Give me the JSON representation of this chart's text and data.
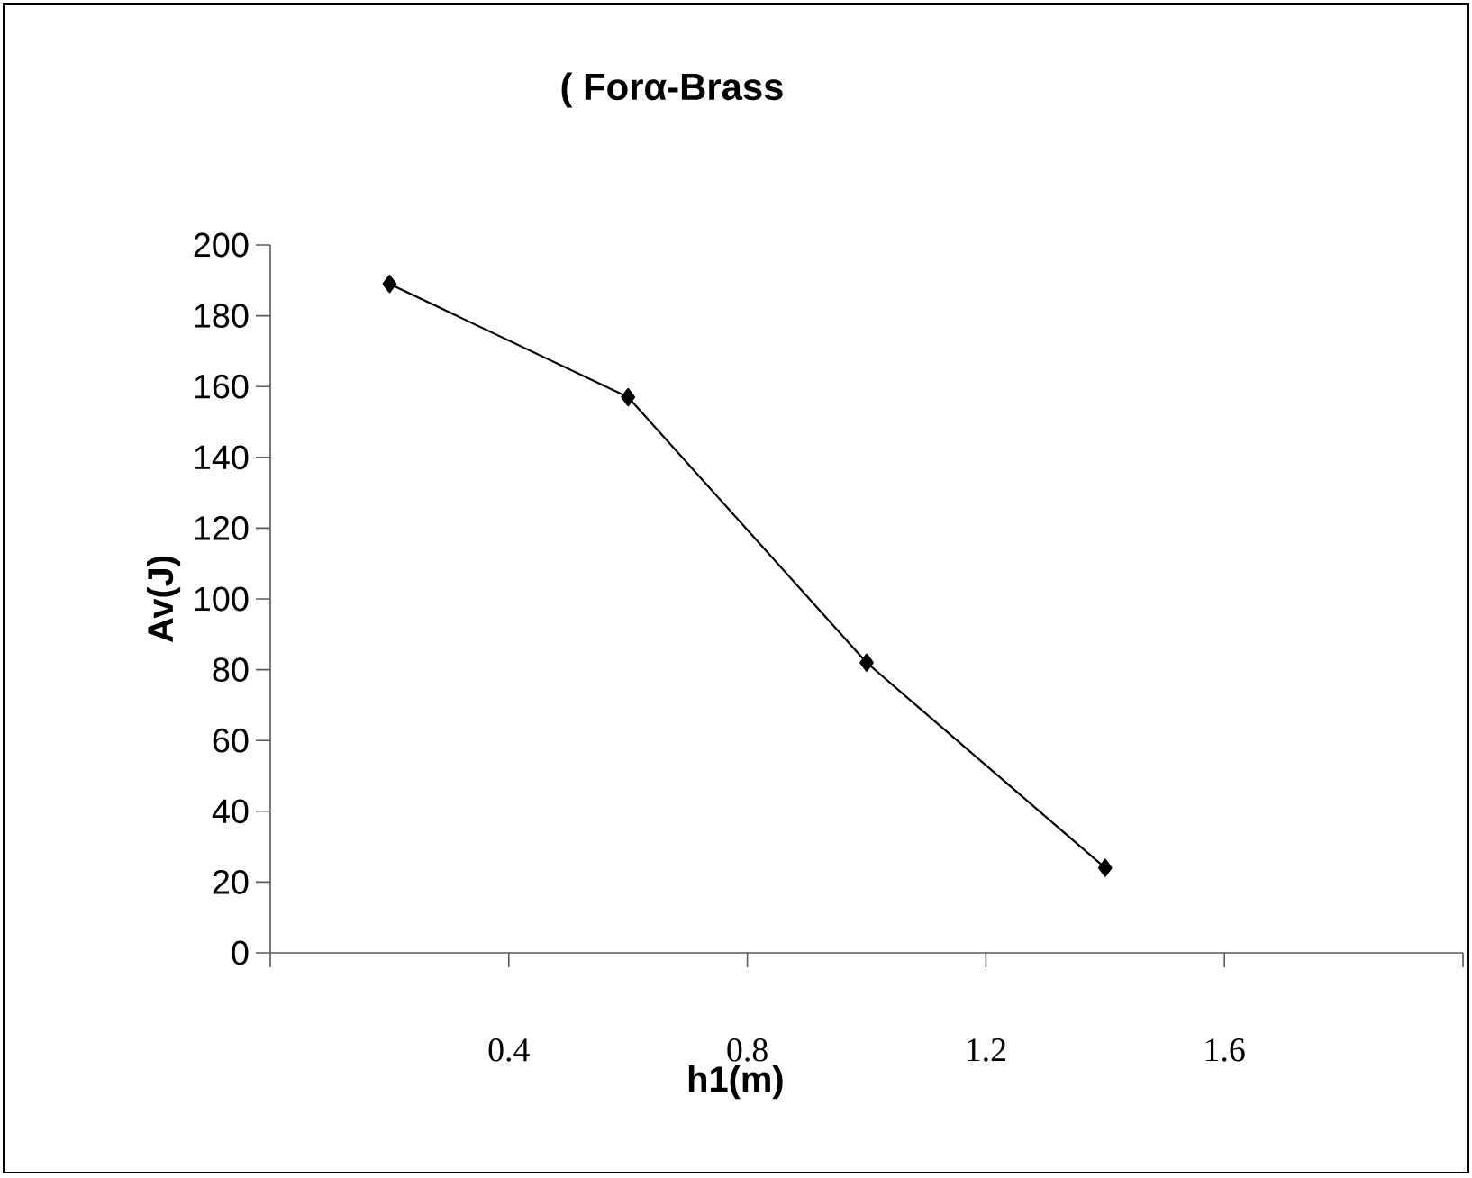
{
  "chart_data": {
    "type": "line",
    "title": "( Forα-Brass",
    "xlabel": "h1(m)",
    "ylabel": "Av(J)",
    "x": [
      0.2,
      0.6,
      1.0,
      1.4
    ],
    "series": [
      {
        "color": "#000000",
        "values": [
          189,
          157,
          82,
          24
        ]
      }
    ],
    "xlim": [
      0,
      2.0
    ],
    "ylim": [
      0,
      200
    ],
    "xticks": [
      {
        "value": 0,
        "label": null
      },
      0.4,
      0.8,
      1.2,
      1.6,
      {
        "value": 2.0,
        "label": null
      }
    ],
    "yticks": [
      0,
      20,
      40,
      60,
      80,
      100,
      120,
      140,
      160,
      180,
      200
    ],
    "marker": "diamond",
    "line_style": "solid",
    "grid": false
  }
}
